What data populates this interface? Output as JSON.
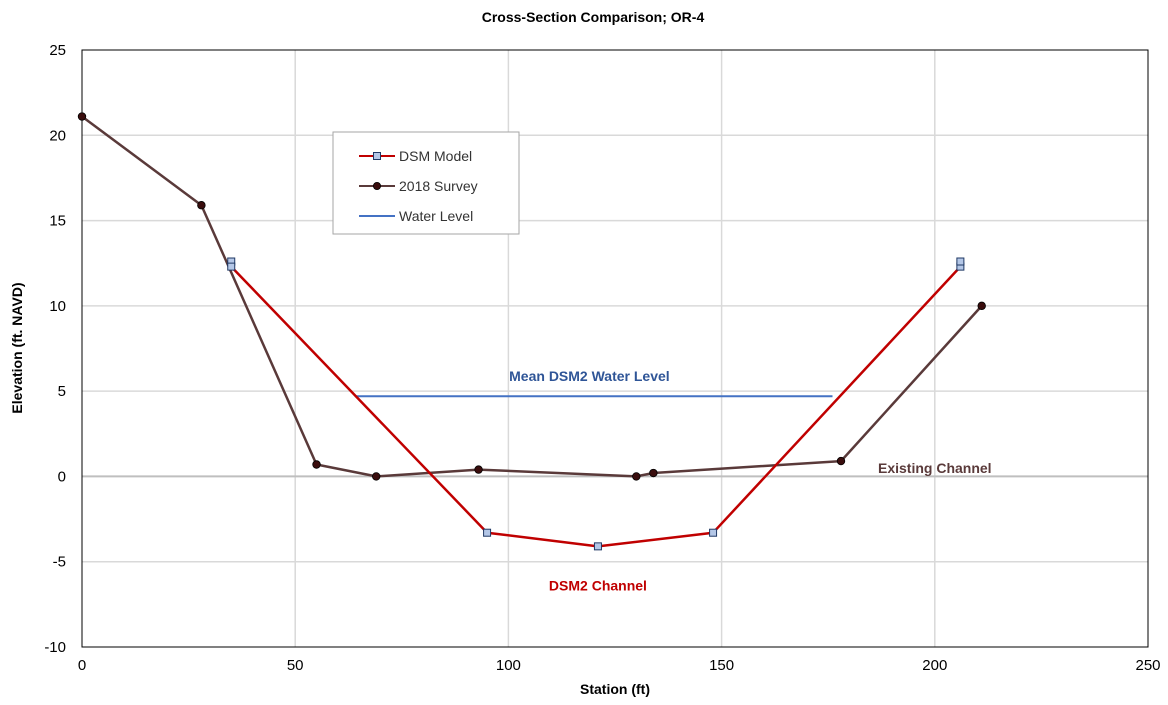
{
  "chart_data": {
    "type": "line",
    "title": "Cross-Section Comparison; OR-4",
    "xlabel": "Station (ft)",
    "ylabel": "Elevation (ft. NAVD)",
    "xlim": [
      0,
      250
    ],
    "ylim": [
      -10,
      25
    ],
    "xticks": [
      0,
      50,
      100,
      150,
      200,
      250
    ],
    "yticks": [
      -10,
      -5,
      0,
      5,
      10,
      15,
      20,
      25
    ],
    "x_tick_labels": [
      "0",
      "50",
      "100",
      "150",
      "200",
      "250"
    ],
    "y_tick_labels": [
      "-10",
      "-5",
      "0",
      "5",
      "10",
      "15",
      "20",
      "25"
    ],
    "grid": true,
    "legend_position": "upper-left inside plot",
    "series": [
      {
        "name": "DSM Model",
        "color": "#c00000",
        "marker": "square",
        "x": [
          35,
          35,
          95,
          121,
          148,
          206,
          206
        ],
        "y": [
          12.6,
          12.3,
          -3.3,
          -4.1,
          -3.3,
          12.3,
          12.6
        ]
      },
      {
        "name": "2018 Survey",
        "color": "#5a3a3a",
        "marker": "circle",
        "x": [
          0,
          28,
          55,
          69,
          93,
          130,
          134,
          178,
          211
        ],
        "y": [
          21.1,
          15.9,
          0.7,
          0.0,
          0.4,
          0.0,
          0.2,
          0.9,
          10.0
        ]
      },
      {
        "name": "Water Level",
        "color": "#4472c4",
        "marker": "none",
        "x": [
          64,
          176
        ],
        "y": [
          4.7,
          4.7
        ]
      }
    ],
    "annotations": [
      {
        "text": "Mean DSM2 Water Level",
        "x": 119,
        "y": 5.6,
        "color": "#2f5597"
      },
      {
        "text": "Existing Channel",
        "x": 200,
        "y": 0.2,
        "color": "#5a3a3a"
      },
      {
        "text": "DSM2 Channel",
        "x": 121,
        "y": -6.7,
        "color": "#c00000"
      }
    ]
  }
}
